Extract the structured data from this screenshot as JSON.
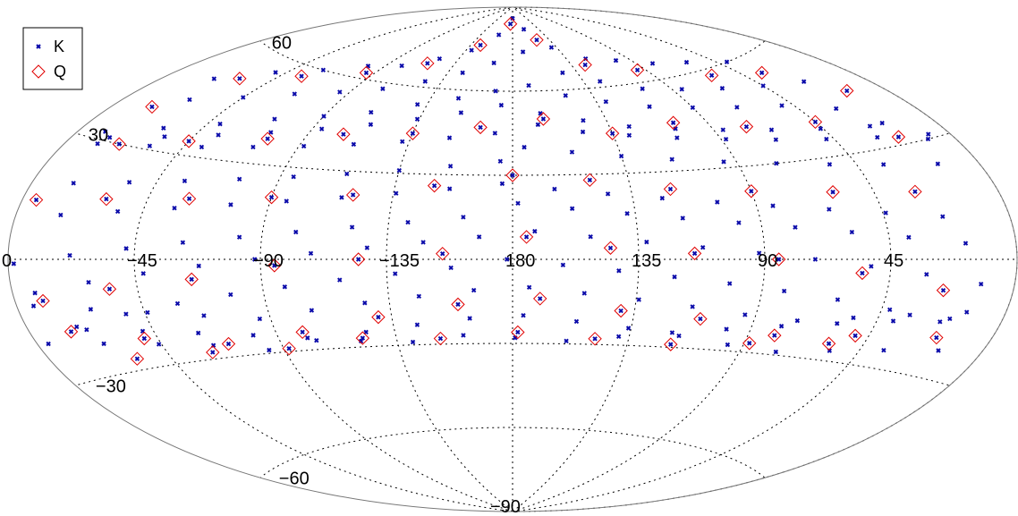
{
  "chart_data": {
    "type": "scatter",
    "projection": "aitoff",
    "title": "",
    "xlabel": "",
    "ylabel": "",
    "center_longitude": 180,
    "longitude_direction": "increasing to the left",
    "lon_range": [
      0,
      360
    ],
    "lat_range": [
      -90,
      90
    ],
    "grid": true,
    "legend_position": "top-left",
    "lon_ticks": [
      {
        "value": 0,
        "label": "0"
      },
      {
        "value": 45,
        "label": "45"
      },
      {
        "value": 90,
        "label": "90"
      },
      {
        "value": 135,
        "label": "135"
      },
      {
        "value": 180,
        "label": "180"
      },
      {
        "value": 225,
        "label": "−135"
      },
      {
        "value": 270,
        "label": "−90"
      },
      {
        "value": 315,
        "label": "−45"
      }
    ],
    "lat_ticks": [
      {
        "value": 60,
        "label": "60"
      },
      {
        "value": 30,
        "label": "30"
      },
      {
        "value": -30,
        "label": "−30"
      },
      {
        "value": -60,
        "label": "−60"
      },
      {
        "value": -90,
        "label": "−90"
      }
    ],
    "series": [
      {
        "name": "K",
        "marker": "x",
        "color": "#0b0baa",
        "points": [
          [
            180,
            86
          ],
          [
            160,
            82
          ],
          [
            200,
            80
          ],
          [
            140,
            75
          ],
          [
            120,
            70
          ],
          [
            100,
            68
          ],
          [
            80,
            65
          ],
          [
            60,
            63
          ],
          [
            40,
            60
          ],
          [
            220,
            74
          ],
          [
            240,
            70
          ],
          [
            260,
            66
          ],
          [
            280,
            64
          ],
          [
            300,
            60
          ],
          [
            320,
            56
          ],
          [
            340,
            50
          ],
          [
            170,
            62
          ],
          [
            150,
            58
          ],
          [
            130,
            55
          ],
          [
            110,
            52
          ],
          [
            90,
            50
          ],
          [
            70,
            48
          ],
          [
            50,
            46
          ],
          [
            30,
            42
          ],
          [
            20,
            36
          ],
          [
            10,
            30
          ],
          [
            190,
            60
          ],
          [
            210,
            57
          ],
          [
            230,
            54
          ],
          [
            250,
            50
          ],
          [
            270,
            47
          ],
          [
            290,
            44
          ],
          [
            310,
            40
          ],
          [
            330,
            36
          ],
          [
            350,
            32
          ],
          [
            175,
            40
          ],
          [
            155,
            38
          ],
          [
            135,
            36
          ],
          [
            115,
            34
          ],
          [
            95,
            32
          ],
          [
            75,
            30
          ],
          [
            55,
            28
          ],
          [
            35,
            26
          ],
          [
            15,
            24
          ],
          [
            185,
            35
          ],
          [
            205,
            33
          ],
          [
            225,
            31
          ],
          [
            245,
            29
          ],
          [
            265,
            27
          ],
          [
            285,
            25
          ],
          [
            305,
            23
          ],
          [
            325,
            21
          ],
          [
            345,
            19
          ],
          [
            178,
            20
          ],
          [
            158,
            18
          ],
          [
            138,
            16
          ],
          [
            118,
            14
          ],
          [
            98,
            12
          ],
          [
            78,
            10
          ],
          [
            58,
            8
          ],
          [
            38,
            6
          ],
          [
            18,
            4
          ],
          [
            198,
            15
          ],
          [
            218,
            13
          ],
          [
            238,
            11
          ],
          [
            258,
            9
          ],
          [
            278,
            7
          ],
          [
            298,
            5
          ],
          [
            318,
            3
          ],
          [
            338,
            1
          ],
          [
            358,
            -1
          ],
          [
            182,
            0
          ],
          [
            162,
            -2
          ],
          [
            142,
            -4
          ],
          [
            122,
            -6
          ],
          [
            102,
            -8
          ],
          [
            82,
            -10
          ],
          [
            62,
            -12
          ],
          [
            42,
            -14
          ],
          [
            22,
            -16
          ],
          [
            202,
            -3
          ],
          [
            222,
            -5
          ],
          [
            242,
            -7
          ],
          [
            262,
            -9
          ],
          [
            282,
            -11
          ],
          [
            302,
            -13
          ],
          [
            322,
            -15
          ],
          [
            342,
            -17
          ],
          [
            176,
            -20
          ],
          [
            156,
            -22
          ],
          [
            136,
            -24
          ],
          [
            116,
            -26
          ],
          [
            96,
            -28
          ],
          [
            76,
            -29
          ],
          [
            56,
            -27
          ],
          [
            36,
            -25
          ],
          [
            16,
            -23
          ],
          [
            196,
            -21
          ],
          [
            216,
            -23
          ],
          [
            236,
            -25
          ],
          [
            256,
            -27
          ],
          [
            276,
            -29
          ],
          [
            296,
            -26
          ],
          [
            316,
            -24
          ],
          [
            336,
            -22
          ],
          [
            356,
            -20
          ],
          [
            170,
            74
          ],
          [
            145,
            66
          ],
          [
            125,
            62
          ],
          [
            105,
            58
          ],
          [
            85,
            56
          ],
          [
            65,
            54
          ],
          [
            45,
            52
          ],
          [
            25,
            50
          ],
          [
            195,
            70
          ],
          [
            215,
            66
          ],
          [
            235,
            62
          ],
          [
            255,
            58
          ],
          [
            275,
            55
          ],
          [
            295,
            52
          ],
          [
            315,
            48
          ],
          [
            335,
            44
          ],
          [
            168,
            48
          ],
          [
            148,
            45
          ],
          [
            128,
            43
          ],
          [
            108,
            41
          ],
          [
            88,
            39
          ],
          [
            68,
            37
          ],
          [
            48,
            35
          ],
          [
            28,
            33
          ],
          [
            8,
            31
          ],
          [
            188,
            45
          ],
          [
            208,
            43
          ],
          [
            228,
            41
          ],
          [
            248,
            39
          ],
          [
            268,
            37
          ],
          [
            288,
            35
          ],
          [
            308,
            33
          ],
          [
            328,
            31
          ],
          [
            348,
            29
          ],
          [
            172,
            10
          ],
          [
            152,
            8
          ],
          [
            132,
            6
          ],
          [
            112,
            4
          ],
          [
            92,
            2
          ],
          [
            72,
            0
          ],
          [
            52,
            -2
          ],
          [
            32,
            -4
          ],
          [
            12,
            -6
          ],
          [
            192,
            8
          ],
          [
            212,
            6
          ],
          [
            232,
            4
          ],
          [
            252,
            2
          ],
          [
            272,
            0
          ],
          [
            292,
            -2
          ],
          [
            312,
            -4
          ],
          [
            332,
            -6
          ],
          [
            352,
            -8
          ],
          [
            174,
            -10
          ],
          [
            154,
            -12
          ],
          [
            134,
            -14
          ],
          [
            114,
            -16
          ],
          [
            94,
            -18
          ],
          [
            74,
            -19
          ],
          [
            54,
            -17
          ],
          [
            34,
            -15
          ],
          [
            14,
            -13
          ],
          [
            194,
            -11
          ],
          [
            214,
            -13
          ],
          [
            234,
            -15
          ],
          [
            254,
            -17
          ],
          [
            274,
            -19
          ],
          [
            294,
            -17
          ],
          [
            314,
            -15
          ],
          [
            334,
            -13
          ],
          [
            354,
            -11
          ],
          [
            186,
            55
          ],
          [
            166,
            52
          ],
          [
            146,
            49
          ],
          [
            126,
            46
          ],
          [
            106,
            44
          ],
          [
            86,
            42
          ],
          [
            66,
            40
          ],
          [
            46,
            38
          ],
          [
            26,
            36
          ],
          [
            206,
            52
          ],
          [
            226,
            49
          ],
          [
            246,
            46
          ],
          [
            266,
            43
          ],
          [
            286,
            40
          ],
          [
            306,
            37
          ],
          [
            326,
            34
          ],
          [
            346,
            31
          ],
          [
            184,
            27
          ],
          [
            164,
            25
          ],
          [
            144,
            23
          ],
          [
            124,
            21
          ],
          [
            104,
            19
          ],
          [
            84,
            17
          ],
          [
            64,
            15
          ],
          [
            44,
            13
          ],
          [
            24,
            11
          ],
          [
            204,
            25
          ],
          [
            224,
            23
          ],
          [
            244,
            21
          ],
          [
            264,
            19
          ],
          [
            284,
            17
          ],
          [
            304,
            15
          ],
          [
            324,
            13
          ],
          [
            344,
            11
          ],
          [
            179,
            -28
          ],
          [
            159,
            -29
          ],
          [
            139,
            -27
          ],
          [
            119,
            -25
          ],
          [
            99,
            -23
          ],
          [
            79,
            -21
          ],
          [
            59,
            -19
          ],
          [
            39,
            -17
          ],
          [
            19,
            -15
          ],
          [
            199,
            -27
          ],
          [
            219,
            -29
          ],
          [
            239,
            -28
          ],
          [
            259,
            -26
          ],
          [
            279,
            -24
          ],
          [
            299,
            -22
          ],
          [
            319,
            -20
          ],
          [
            339,
            -18
          ]
        ]
      },
      {
        "name": "Q",
        "marker": "diamond",
        "color": "#e00000",
        "points": [
          [
            185,
            84
          ],
          [
            150,
            78
          ],
          [
            215,
            76
          ],
          [
            125,
            68
          ],
          [
            95,
            64
          ],
          [
            245,
            68
          ],
          [
            275,
            62
          ],
          [
            305,
            57
          ],
          [
            60,
            58
          ],
          [
            35,
            55
          ],
          [
            330,
            52
          ],
          [
            15,
            45
          ],
          [
            345,
            40
          ],
          [
            165,
            50
          ],
          [
            135,
            44
          ],
          [
            105,
            46
          ],
          [
            75,
            42
          ],
          [
            45,
            40
          ],
          [
            195,
            47
          ],
          [
            225,
            44
          ],
          [
            255,
            42
          ],
          [
            285,
            38
          ],
          [
            315,
            34
          ],
          [
            340,
            30
          ],
          [
            20,
            32
          ],
          [
            180,
            30
          ],
          [
            150,
            28
          ],
          [
            120,
            24
          ],
          [
            90,
            22
          ],
          [
            60,
            20
          ],
          [
            30,
            18
          ],
          [
            210,
            26
          ],
          [
            240,
            22
          ],
          [
            270,
            20
          ],
          [
            300,
            18
          ],
          [
            330,
            16
          ],
          [
            355,
            14
          ],
          [
            175,
            8
          ],
          [
            145,
            4
          ],
          [
            115,
            2
          ],
          [
            85,
            0
          ],
          [
            55,
            -4
          ],
          [
            25,
            -8
          ],
          [
            205,
            2
          ],
          [
            235,
            0
          ],
          [
            265,
            -2
          ],
          [
            295,
            -6
          ],
          [
            325,
            -8
          ],
          [
            350,
            -10
          ],
          [
            170,
            -14
          ],
          [
            140,
            -18
          ],
          [
            110,
            -20
          ],
          [
            80,
            -24
          ],
          [
            50,
            -22
          ],
          [
            20,
            -20
          ],
          [
            200,
            -16
          ],
          [
            230,
            -20
          ],
          [
            260,
            -24
          ],
          [
            290,
            -26
          ],
          [
            320,
            -22
          ],
          [
            345,
            -18
          ],
          [
            178,
            -26
          ],
          [
            148,
            -28
          ],
          [
            118,
            -29
          ],
          [
            88,
            -27
          ],
          [
            58,
            -25
          ],
          [
            208,
            -28
          ],
          [
            238,
            -27
          ],
          [
            268,
            -29
          ],
          [
            298,
            -28
          ],
          [
            328,
            -27
          ]
        ]
      }
    ]
  }
}
